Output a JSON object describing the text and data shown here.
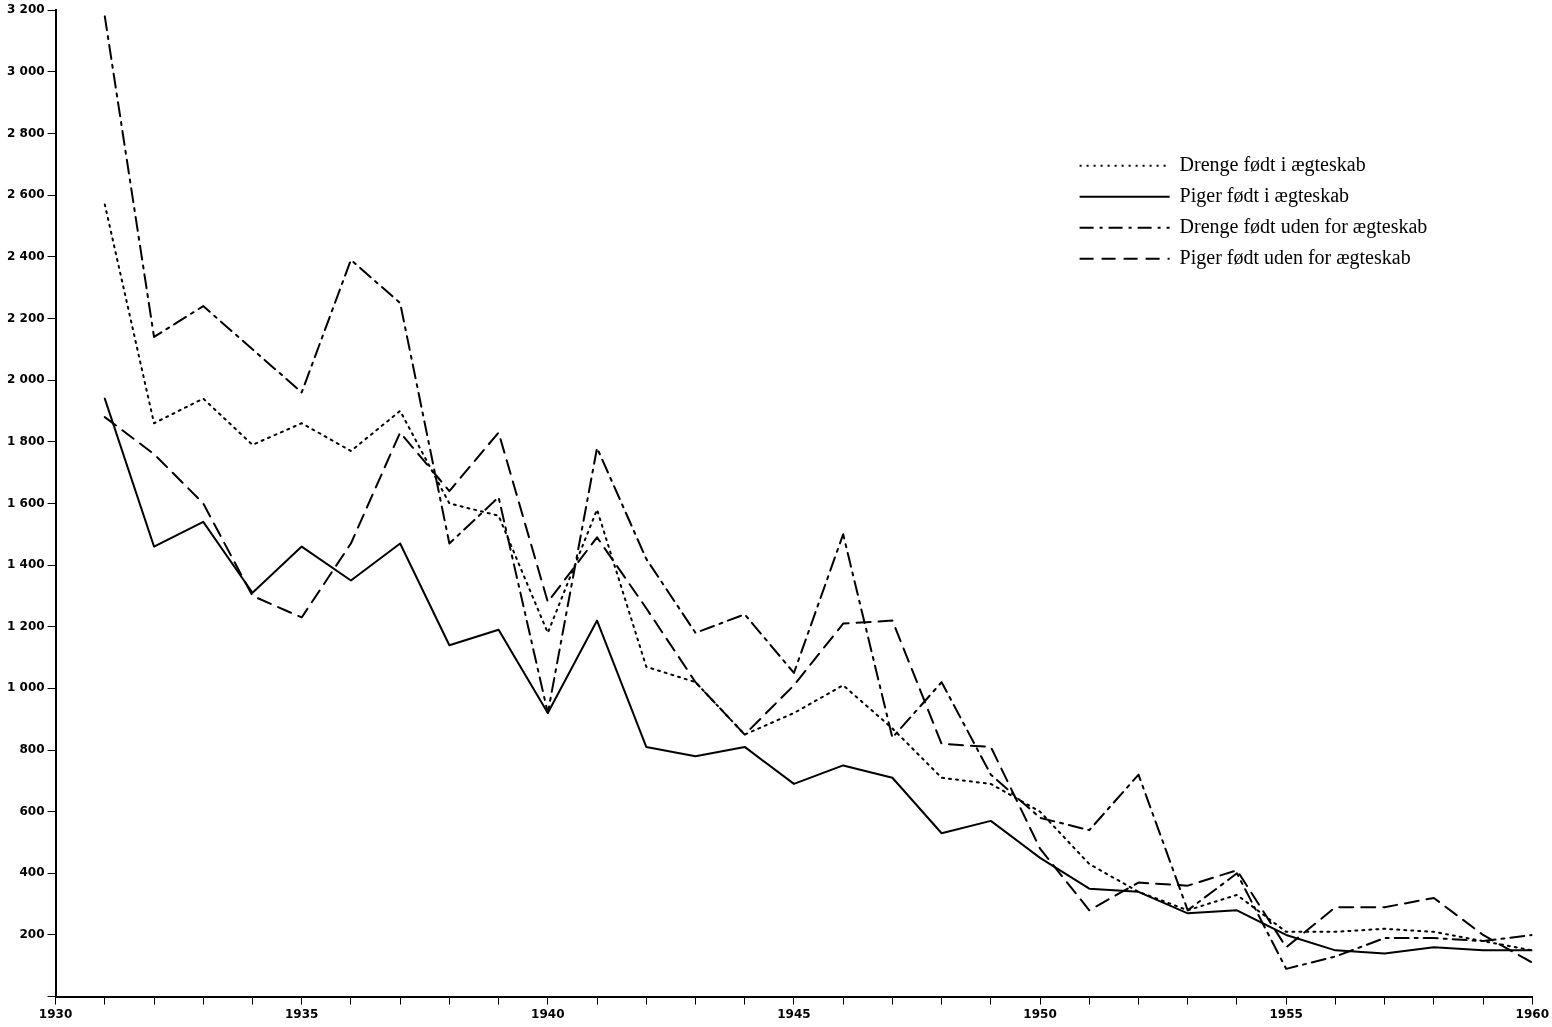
{
  "chart_data": {
    "type": "line",
    "x": [
      1931,
      1932,
      1933,
      1934,
      1935,
      1936,
      1937,
      1938,
      1939,
      1940,
      1941,
      1942,
      1943,
      1944,
      1945,
      1946,
      1947,
      1948,
      1949,
      1950,
      1951,
      1952,
      1953,
      1954,
      1955,
      1956,
      1957,
      1958,
      1959,
      1960
    ],
    "series": [
      {
        "name": "Drenge født i ægteskab",
        "color": "#000000",
        "line_style": "dotted",
        "values": [
          2570,
          1860,
          1940,
          1790,
          1860,
          1770,
          1900,
          1600,
          1560,
          1180,
          1580,
          1070,
          1020,
          850,
          920,
          1010,
          870,
          710,
          690,
          600,
          430,
          340,
          280,
          330,
          210,
          210,
          220,
          210,
          180,
          150
        ]
      },
      {
        "name": "Piger født i ægteskab",
        "color": "#000000",
        "line_style": "solid",
        "values": [
          1940,
          1460,
          1540,
          1310,
          1460,
          1350,
          1470,
          1140,
          1190,
          920,
          1220,
          810,
          780,
          810,
          690,
          750,
          710,
          530,
          570,
          450,
          350,
          340,
          270,
          280,
          200,
          150,
          140,
          160,
          150,
          150
        ]
      },
      {
        "name": "Drenge født uden for ægteskab",
        "color": "#000000",
        "line_style": "dashdot",
        "values": [
          3180,
          2140,
          2240,
          2100,
          1960,
          2390,
          2250,
          1470,
          1620,
          920,
          1780,
          1420,
          1180,
          1240,
          1050,
          1500,
          840,
          1020,
          720,
          580,
          540,
          720,
          280,
          400,
          90,
          130,
          190,
          190,
          180,
          200
        ]
      },
      {
        "name": "Piger født uden for ægteskab",
        "color": "#000000",
        "line_style": "dashed",
        "values": [
          1880,
          1760,
          1600,
          1300,
          1230,
          1470,
          1830,
          1640,
          1830,
          1280,
          1490,
          1260,
          1020,
          850,
          1010,
          1210,
          1220,
          820,
          810,
          480,
          280,
          370,
          360,
          410,
          160,
          290,
          290,
          320,
          200,
          110
        ]
      }
    ],
    "xlim": [
      1930,
      1960
    ],
    "xticks": [
      1930,
      {
        "value": 1931,
        "label": null
      },
      {
        "value": 1932,
        "label": null
      },
      {
        "value": 1933,
        "label": null
      },
      {
        "value": 1934,
        "label": null
      },
      1935,
      {
        "value": 1936,
        "label": null
      },
      {
        "value": 1937,
        "label": null
      },
      {
        "value": 1938,
        "label": null
      },
      {
        "value": 1939,
        "label": null
      },
      1940,
      {
        "value": 1941,
        "label": null
      },
      {
        "value": 1942,
        "label": null
      },
      {
        "value": 1943,
        "label": null
      },
      {
        "value": 1944,
        "label": null
      },
      1945,
      {
        "value": 1946,
        "label": null
      },
      {
        "value": 1947,
        "label": null
      },
      {
        "value": 1948,
        "label": null
      },
      {
        "value": 1949,
        "label": null
      },
      1950,
      {
        "value": 1951,
        "label": null
      },
      {
        "value": 1952,
        "label": null
      },
      {
        "value": 1953,
        "label": null
      },
      {
        "value": 1954,
        "label": null
      },
      1955,
      {
        "value": 1956,
        "label": null
      },
      {
        "value": 1957,
        "label": null
      },
      {
        "value": 1958,
        "label": null
      },
      {
        "value": 1959,
        "label": null
      },
      1960
    ],
    "ylim": [
      0,
      3200
    ],
    "yticks": [
      {
        "value": 0,
        "label": null
      },
      {
        "value": 200,
        "label": "200"
      },
      {
        "value": 400,
        "label": "400"
      },
      {
        "value": 600,
        "label": "600"
      },
      {
        "value": 800,
        "label": "800"
      },
      {
        "value": 1000,
        "label": "1 000"
      },
      {
        "value": 1200,
        "label": "1 200"
      },
      {
        "value": 1400,
        "label": "1 400"
      },
      {
        "value": 1600,
        "label": "1 600"
      },
      {
        "value": 1800,
        "label": "1 800"
      },
      {
        "value": 2000,
        "label": "2 000"
      },
      {
        "value": 2200,
        "label": "2 200"
      },
      {
        "value": 2400,
        "label": "2 400"
      },
      {
        "value": 2600,
        "label": "2 600"
      },
      {
        "value": 2800,
        "label": "2 800"
      },
      {
        "value": 3000,
        "label": "3 000"
      },
      {
        "value": 3200,
        "label": "3 200"
      }
    ],
    "grid": false,
    "legend": "top right",
    "marker": "none"
  }
}
